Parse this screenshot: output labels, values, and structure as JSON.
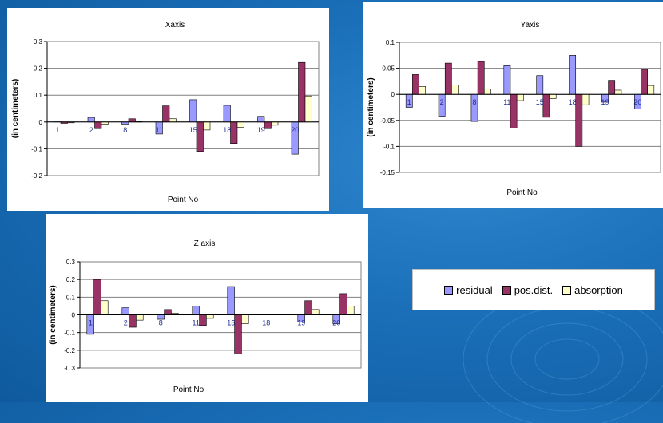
{
  "colors": {
    "residual": "#9999ff",
    "pos_dist": "#993366",
    "absorption": "#ffffcc"
  },
  "legend": [
    {
      "label": "residual",
      "key": "residual"
    },
    {
      "label": "pos.dist.",
      "key": "pos_dist"
    },
    {
      "label": "absorption",
      "key": "absorption"
    }
  ],
  "chart_data": [
    {
      "type": "bar",
      "title": "Xaxis",
      "xlabel": "Point No",
      "ylabel": "(in centimeters)",
      "ylim": [
        -0.2,
        0.3
      ],
      "yticks": [
        -0.2,
        -0.1,
        0,
        0.1,
        0.2,
        0.3
      ],
      "grid": true,
      "categories": [
        "1",
        "2",
        "8",
        "11",
        "15",
        "18",
        "19",
        "20"
      ],
      "series": [
        {
          "name": "residual",
          "values": [
            0.003,
            0.017,
            -0.008,
            -0.045,
            0.083,
            0.062,
            0.021,
            -0.12
          ]
        },
        {
          "name": "pos.dist.",
          "values": [
            -0.005,
            -0.025,
            0.012,
            0.06,
            -0.11,
            -0.08,
            -0.025,
            0.222
          ]
        },
        {
          "name": "absorption",
          "values": [
            -0.003,
            -0.008,
            0.002,
            0.012,
            -0.03,
            -0.02,
            -0.012,
            0.097
          ]
        }
      ]
    },
    {
      "type": "bar",
      "title": "Yaxis",
      "xlabel": "Point No",
      "ylabel": "(in centimeters)",
      "ylim": [
        -0.15,
        0.1
      ],
      "yticks": [
        -0.15,
        -0.1,
        -0.05,
        0,
        0.05,
        0.1
      ],
      "grid": true,
      "categories": [
        "1",
        "2",
        "8",
        "11",
        "15",
        "18",
        "19",
        "20"
      ],
      "series": [
        {
          "name": "residual",
          "values": [
            -0.025,
            -0.042,
            -0.052,
            0.055,
            0.036,
            0.075,
            -0.015,
            -0.028
          ]
        },
        {
          "name": "pos.dist.",
          "values": [
            0.038,
            0.06,
            0.063,
            -0.065,
            -0.044,
            -0.1,
            0.027,
            0.048
          ]
        },
        {
          "name": "absorption",
          "values": [
            0.015,
            0.018,
            0.01,
            -0.012,
            -0.008,
            -0.02,
            0.008,
            0.017
          ]
        }
      ]
    },
    {
      "type": "bar",
      "title": "Z axis",
      "xlabel": "Point No",
      "ylabel": "(in centimeters)",
      "ylim": [
        -0.3,
        0.3
      ],
      "yticks": [
        -0.3,
        -0.2,
        -0.1,
        0,
        0.1,
        0.2,
        0.3
      ],
      "grid": true,
      "categories": [
        "1",
        "2",
        "8",
        "11",
        "15",
        "18",
        "19",
        "20"
      ],
      "series": [
        {
          "name": "residual",
          "values": [
            -0.11,
            0.04,
            -0.025,
            0.05,
            0.16,
            0,
            -0.04,
            -0.05
          ]
        },
        {
          "name": "pos.dist.",
          "values": [
            0.2,
            -0.07,
            0.03,
            -0.06,
            -0.22,
            0,
            0.08,
            0.12
          ]
        },
        {
          "name": "absorption",
          "values": [
            0.08,
            -0.03,
            0.01,
            -0.02,
            -0.05,
            0,
            0.03,
            0.05
          ]
        }
      ]
    }
  ]
}
